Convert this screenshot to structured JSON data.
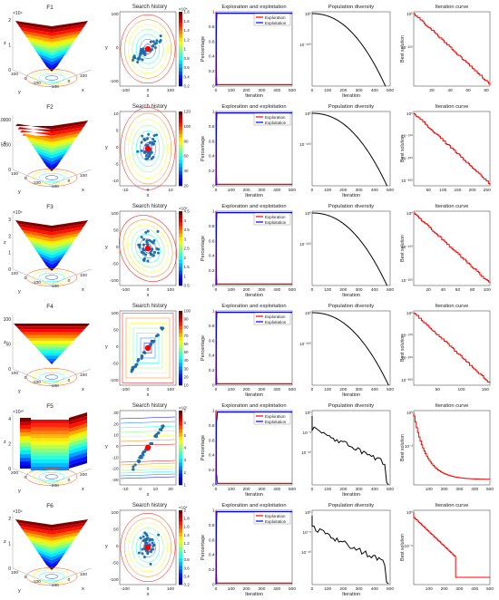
{
  "colors": {
    "exploration": "#ff0000",
    "exploitation": "#0000ff",
    "curve": "#000000",
    "iter": "#ff0000",
    "scatter": "#1f77b4",
    "best": "#ff0000"
  },
  "rows": [
    {
      "fn": "F1",
      "surf_z": [
        "0",
        "1",
        "2"
      ],
      "surf_exp": "×10⁴",
      "surf_ax1": [
        "100",
        "0",
        "-100"
      ],
      "surf_ax2": [
        "-100",
        "0",
        "100"
      ],
      "hist_x": [
        "-100",
        "0",
        "100"
      ],
      "hist_y": [
        "100",
        "0",
        "-100"
      ],
      "hist_cb": [
        "0.2",
        "0.4",
        "0.6",
        "0.8",
        "1",
        "1.2",
        "1.4",
        "1.6",
        "1.8"
      ],
      "hist_exp": "×10⁴",
      "expl_x": [
        "0",
        "100",
        "200",
        "300",
        "400",
        "500"
      ],
      "div_ticks": [
        "10⁰",
        "10⁻¹⁰⁰"
      ],
      "div_x": [
        "0",
        "100",
        "200",
        "300",
        "400",
        "500"
      ],
      "div_end": 470,
      "iter_ticks": [
        "10⁰",
        "10⁻²⁰⁰"
      ],
      "iter_x": [
        "20",
        "40",
        "60",
        "80"
      ],
      "iter_max": 85,
      "iter_type": "steady"
    },
    {
      "fn": "F2",
      "surf_z": [
        "0",
        "5000",
        "10000"
      ],
      "surf_exp": "",
      "surf_ax1": [
        "100",
        "0",
        "-100"
      ],
      "surf_ax2": [
        "-100",
        "0",
        "100"
      ],
      "hist_x": [
        "-10",
        "0",
        "10"
      ],
      "hist_y": [
        "10",
        "5",
        "0",
        "-5",
        "-10"
      ],
      "hist_cb": [
        "20",
        "40",
        "60",
        "80",
        "100",
        "120"
      ],
      "hist_exp": "",
      "expl_x": [
        "0",
        "100",
        "200",
        "300",
        "400",
        "500"
      ],
      "div_ticks": [
        "10⁰",
        "10⁻¹⁰⁰"
      ],
      "div_x": [
        "0",
        "100",
        "200",
        "300",
        "400",
        "500"
      ],
      "div_end": 480,
      "iter_ticks": [
        "10⁰",
        "10⁻¹⁰⁰",
        "10⁻²⁰⁰",
        "10⁻³⁰⁰"
      ],
      "iter_x": [
        "50",
        "100",
        "150",
        "200",
        "250"
      ],
      "iter_max": 280,
      "iter_type": "steady"
    },
    {
      "fn": "F3",
      "surf_z": [
        "0",
        "1",
        "2",
        "3"
      ],
      "surf_exp": "×10⁵",
      "surf_ax1": [
        "100",
        "0",
        "-100"
      ],
      "surf_ax2": [
        "-100",
        "0",
        "100"
      ],
      "hist_x": [
        "-100",
        "0",
        "100"
      ],
      "hist_y": [
        "100",
        "50",
        "0",
        "-50",
        "-100"
      ],
      "hist_cb": [
        "0.5",
        "1",
        "1.5",
        "2",
        "2.5",
        "3",
        "3.5",
        "4",
        "4.5"
      ],
      "hist_exp": "×10⁴",
      "expl_x": [
        "0",
        "100",
        "200",
        "300",
        "400",
        "500"
      ],
      "div_ticks": [
        "10⁰",
        "10⁻¹⁰⁰"
      ],
      "div_x": [
        "0",
        "100",
        "200",
        "300",
        "400",
        "500"
      ],
      "div_end": 480,
      "iter_ticks": [
        "10⁰",
        "10⁻¹⁰⁰",
        "10⁻²⁰⁰"
      ],
      "iter_x": [
        "20",
        "40",
        "60",
        "80",
        "100"
      ],
      "iter_max": 115,
      "iter_type": "steady"
    },
    {
      "fn": "F4",
      "surf_z": [
        "0",
        "50",
        "100"
      ],
      "surf_exp": "",
      "surf_ax1": [
        "100",
        "0",
        "-100"
      ],
      "surf_ax2": [
        "-100",
        "0",
        "100"
      ],
      "hist_x": [
        "-100",
        "0",
        "100"
      ],
      "hist_y": [
        "100",
        "50",
        "0",
        "-50",
        "-100"
      ],
      "hist_cb": [
        "10",
        "20",
        "30",
        "40",
        "50",
        "60",
        "70",
        "80",
        "90",
        "100"
      ],
      "hist_exp": "",
      "expl_x": [
        "0",
        "100",
        "200",
        "300",
        "400",
        "500"
      ],
      "div_ticks": [
        "10⁰",
        "10⁻¹⁰⁰"
      ],
      "div_x": [
        "0",
        "100",
        "200",
        "300",
        "400",
        "500"
      ],
      "div_end": 490,
      "iter_ticks": [
        "10⁰",
        "10⁻¹⁰⁰",
        "10⁻²⁰⁰",
        "10⁻³⁰⁰"
      ],
      "iter_x": [
        "50",
        "100",
        "150"
      ],
      "iter_max": 190,
      "iter_type": "steady"
    },
    {
      "fn": "F5",
      "surf_z": [
        "0",
        "2",
        "4"
      ],
      "surf_exp": "×10¹⁰",
      "surf_ax1": [
        "200",
        "0"
      ],
      "surf_ax2": [
        "-200",
        "0",
        "200"
      ],
      "hist_x": [
        "-10",
        "0",
        "10",
        "20"
      ],
      "hist_y": [
        "30",
        "20",
        "10",
        "0",
        "-10",
        "-20",
        "-30"
      ],
      "hist_cb": [
        "1",
        "2",
        "3",
        "4",
        "5",
        "6",
        "7"
      ],
      "hist_exp": "×10⁷",
      "expl_x": [
        "0",
        "100",
        "200",
        "300",
        "400",
        "500"
      ],
      "div_ticks": [
        "10⁰",
        "10⁻⁵",
        "10⁻¹⁰"
      ],
      "div_x": [
        "0",
        "100",
        "200",
        "300",
        "400",
        "500"
      ],
      "div_end": 490,
      "iter_ticks": [
        "10⁰",
        "10⁻²"
      ],
      "iter_x": [
        "100",
        "200",
        "300",
        "400",
        "500"
      ],
      "iter_max": 500,
      "iter_type": "fast"
    },
    {
      "fn": "F6",
      "surf_z": [
        "0",
        "1",
        "2"
      ],
      "surf_exp": "×10⁴",
      "surf_ax1": [
        "100",
        "0",
        "-100"
      ],
      "surf_ax2": [
        "-100",
        "0",
        "100"
      ],
      "hist_x": [
        "-100",
        "0",
        "100"
      ],
      "hist_y": [
        "100",
        "50",
        "0",
        "-50",
        "-100"
      ],
      "hist_cb": [
        "0.2",
        "0.4",
        "0.6",
        "0.8",
        "1",
        "1.2",
        "1.4",
        "1.6",
        "1.8",
        "2"
      ],
      "hist_exp": "×10⁴",
      "expl_x": [
        "0",
        "100",
        "200",
        "300",
        "400",
        "500"
      ],
      "div_ticks": [
        "10⁰",
        "10⁻⁵",
        "10⁻¹⁰"
      ],
      "div_x": [
        "0",
        "100",
        "200",
        "300",
        "400",
        "500"
      ],
      "div_end": 490,
      "iter_ticks": [
        "10⁰",
        "10⁻⁵"
      ],
      "iter_x": [
        "100",
        "200",
        "300",
        "400",
        "500"
      ],
      "iter_max": 500,
      "iter_type": "step"
    }
  ],
  "labels": {
    "search_title": "Search history",
    "expl_title": "Exploration and exploitation",
    "div_title": "Population diversity",
    "iter_title": "Iteration curve",
    "legend_exploration": "Exploration",
    "legend_exploitation": "Exploitation",
    "x": "x",
    "y": "y",
    "z": "z",
    "iteration": "Iteration",
    "percentage": "Percentage",
    "best_solution": "Best solution"
  },
  "chart_data": [
    {
      "type": "line",
      "title": "Exploration and exploitation",
      "xlabel": "Iteration",
      "ylabel": "Percentage",
      "xlim": [
        0,
        500
      ],
      "ylim": [
        0,
        1
      ],
      "series": [
        {
          "name": "Exploration",
          "x": [
            0,
            5,
            15,
            500
          ],
          "y": [
            1,
            0.1,
            0,
            0
          ]
        },
        {
          "name": "Exploitation",
          "x": [
            0,
            5,
            15,
            500
          ],
          "y": [
            0,
            0.9,
            1,
            1
          ]
        }
      ]
    },
    {
      "type": "line",
      "title": "Population diversity",
      "xlabel": "Iteration",
      "yscale": "log",
      "xlim": [
        0,
        500
      ]
    },
    {
      "type": "line",
      "title": "Iteration curve",
      "ylabel": "Best solution",
      "yscale": "log"
    }
  ]
}
